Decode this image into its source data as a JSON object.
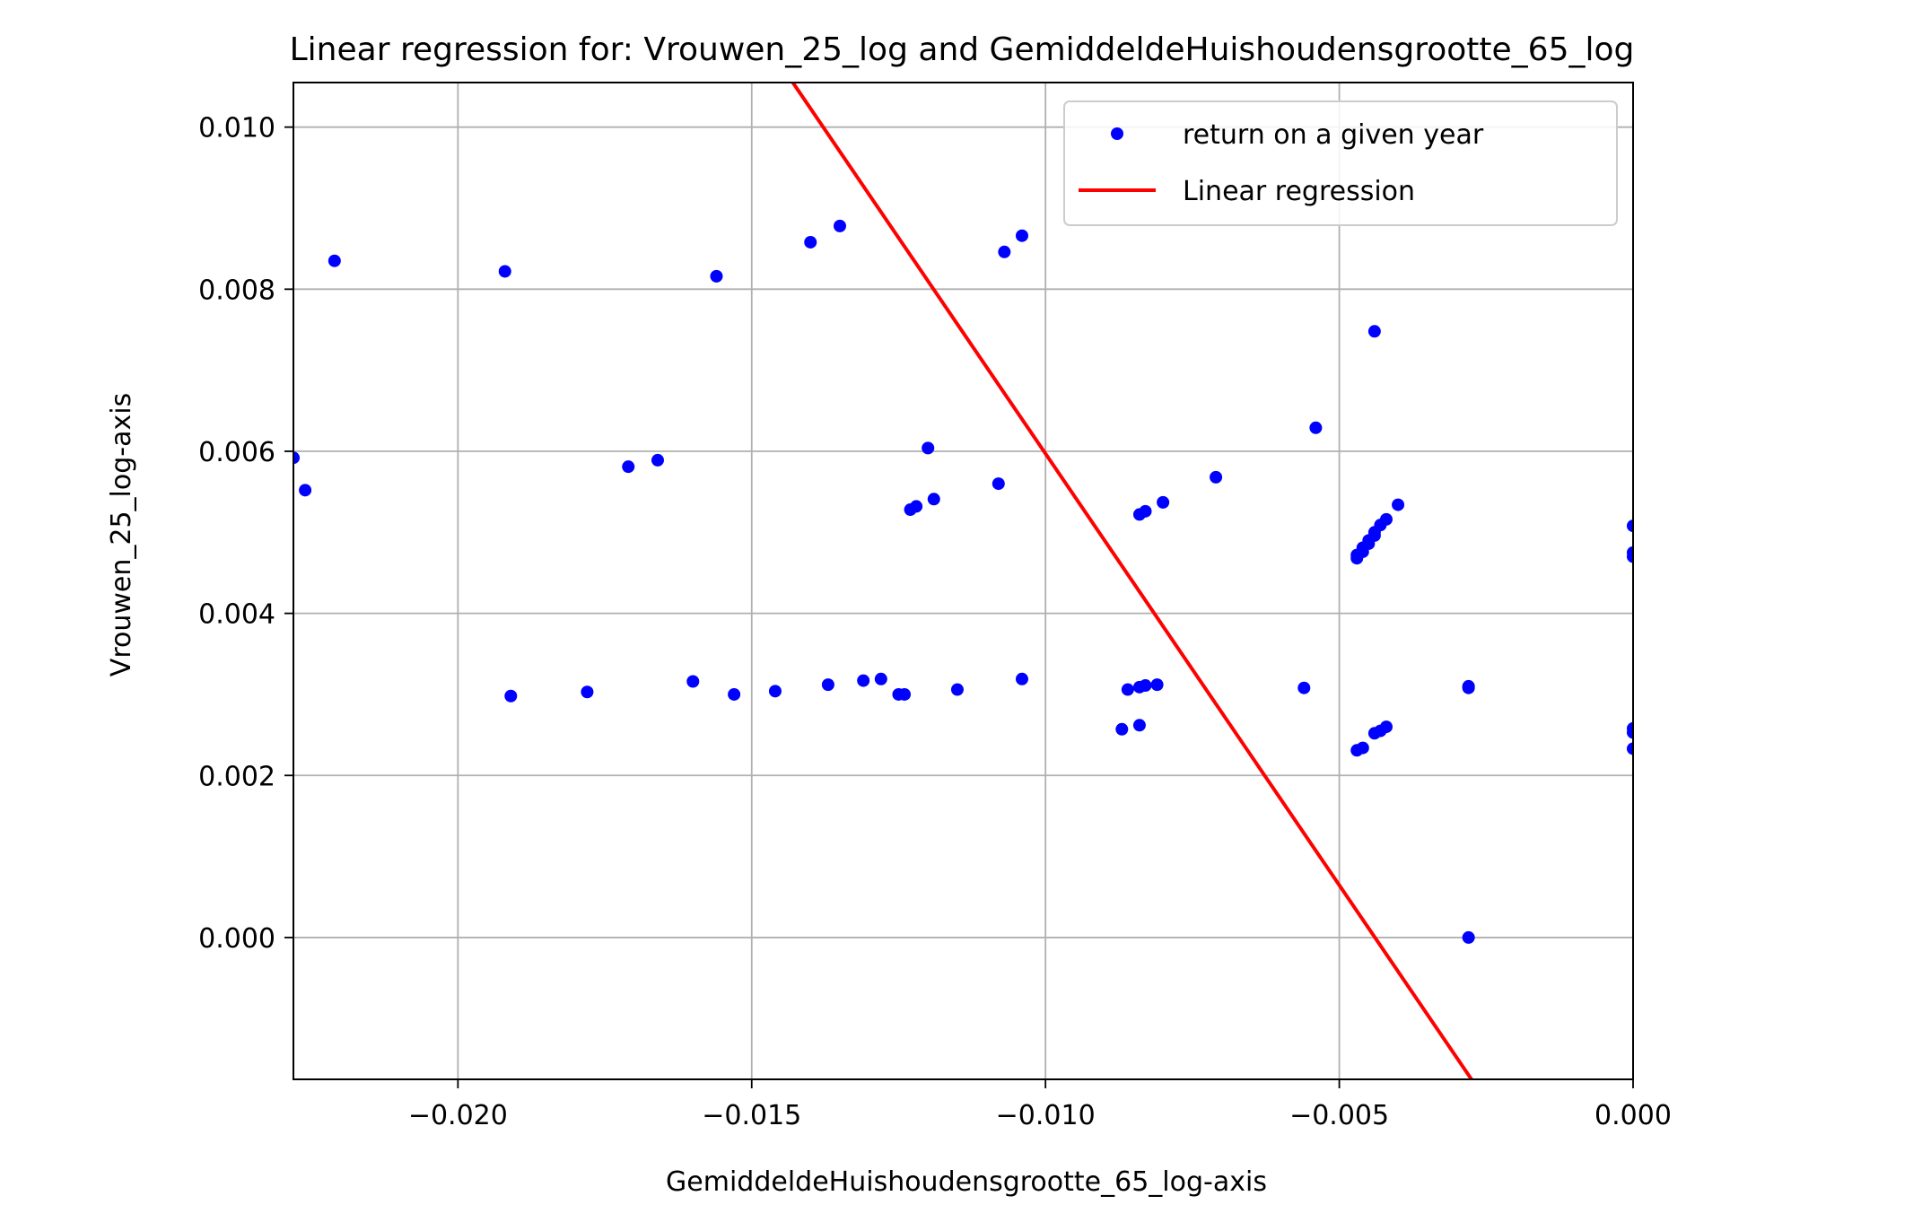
{
  "chart_data": {
    "type": "scatter",
    "title": "Linear regression for: Vrouwen_25_log and GemiddeldeHuishoudensgrootte_65_log",
    "xlabel": "GemiddeldeHuishoudensgrootte_65_log-axis",
    "ylabel": "Vrouwen_25_log-axis",
    "xlim": [
      -0.0228,
      0.0
    ],
    "ylim": [
      -0.00175,
      0.01055
    ],
    "x_ticks": [
      -0.02,
      -0.015,
      -0.01,
      -0.005,
      0.0
    ],
    "x_tick_labels": [
      "−0.020",
      "−0.015",
      "−0.010",
      "−0.005",
      "0.000"
    ],
    "y_ticks": [
      0.0,
      0.002,
      0.004,
      0.006,
      0.008,
      0.01
    ],
    "y_tick_labels": [
      "0.000",
      "0.002",
      "0.004",
      "0.006",
      "0.008",
      "0.010"
    ],
    "grid": true,
    "legend_position": "top-right",
    "series": [
      {
        "name": "return on a given year",
        "kind": "scatter",
        "color": "#0000ff",
        "points": [
          [
            -0.0228,
            0.00592
          ],
          [
            -0.0226,
            0.00552
          ],
          [
            -0.0221,
            0.00835
          ],
          [
            -0.0192,
            0.00822
          ],
          [
            -0.0171,
            0.00581
          ],
          [
            -0.0166,
            0.00589
          ],
          [
            -0.0156,
            0.00816
          ],
          [
            -0.014,
            0.00858
          ],
          [
            -0.0135,
            0.00878
          ],
          [
            -0.012,
            0.00604
          ],
          [
            -0.0123,
            0.00528
          ],
          [
            -0.0122,
            0.00532
          ],
          [
            -0.0119,
            0.00541
          ],
          [
            -0.0108,
            0.0056
          ],
          [
            -0.0107,
            0.00846
          ],
          [
            -0.0104,
            0.00866
          ],
          [
            -0.0084,
            0.00522
          ],
          [
            -0.0083,
            0.00526
          ],
          [
            -0.008,
            0.00537
          ],
          [
            -0.0071,
            0.00568
          ],
          [
            -0.0054,
            0.00629
          ],
          [
            -0.0044,
            0.00748
          ],
          [
            -0.004,
            0.00534
          ],
          [
            -0.0042,
            0.00516
          ],
          [
            -0.0043,
            0.00509
          ],
          [
            -0.0044,
            0.005
          ],
          [
            -0.0044,
            0.00496
          ],
          [
            -0.0045,
            0.0049
          ],
          [
            -0.0045,
            0.00486
          ],
          [
            -0.0046,
            0.00481
          ],
          [
            -0.0046,
            0.00476
          ],
          [
            -0.0047,
            0.00472
          ],
          [
            -0.0047,
            0.00468
          ],
          [
            0.0,
            0.00508
          ],
          [
            0.0,
            0.00475
          ],
          [
            0.0,
            0.0047
          ],
          [
            -0.0191,
            0.00298
          ],
          [
            -0.0178,
            0.00303
          ],
          [
            -0.016,
            0.00316
          ],
          [
            -0.0153,
            0.003
          ],
          [
            -0.0146,
            0.00304
          ],
          [
            -0.0137,
            0.00312
          ],
          [
            -0.0131,
            0.00317
          ],
          [
            -0.0128,
            0.00319
          ],
          [
            -0.0125,
            0.003
          ],
          [
            -0.0124,
            0.003
          ],
          [
            -0.0115,
            0.00306
          ],
          [
            -0.0104,
            0.00319
          ],
          [
            -0.0086,
            0.00306
          ],
          [
            -0.0084,
            0.00309
          ],
          [
            -0.0083,
            0.00311
          ],
          [
            -0.0081,
            0.00312
          ],
          [
            -0.0056,
            0.00308
          ],
          [
            -0.0028,
            0.00308
          ],
          [
            -0.0028,
            0.0031
          ],
          [
            -0.0087,
            0.00257
          ],
          [
            -0.0084,
            0.00262
          ],
          [
            -0.0047,
            0.00231
          ],
          [
            -0.0046,
            0.00234
          ],
          [
            -0.0044,
            0.00252
          ],
          [
            -0.0043,
            0.00255
          ],
          [
            -0.0042,
            0.0026
          ],
          [
            0.0,
            0.00258
          ],
          [
            0.0,
            0.00253
          ],
          [
            0.0,
            0.00233
          ],
          [
            -0.0028,
            0.0
          ]
        ]
      },
      {
        "name": "Linear regression",
        "kind": "line",
        "color": "#ff0000",
        "points": [
          [
            -0.0143,
            0.01055
          ],
          [
            -0.00275,
            -0.00175
          ]
        ]
      }
    ]
  }
}
